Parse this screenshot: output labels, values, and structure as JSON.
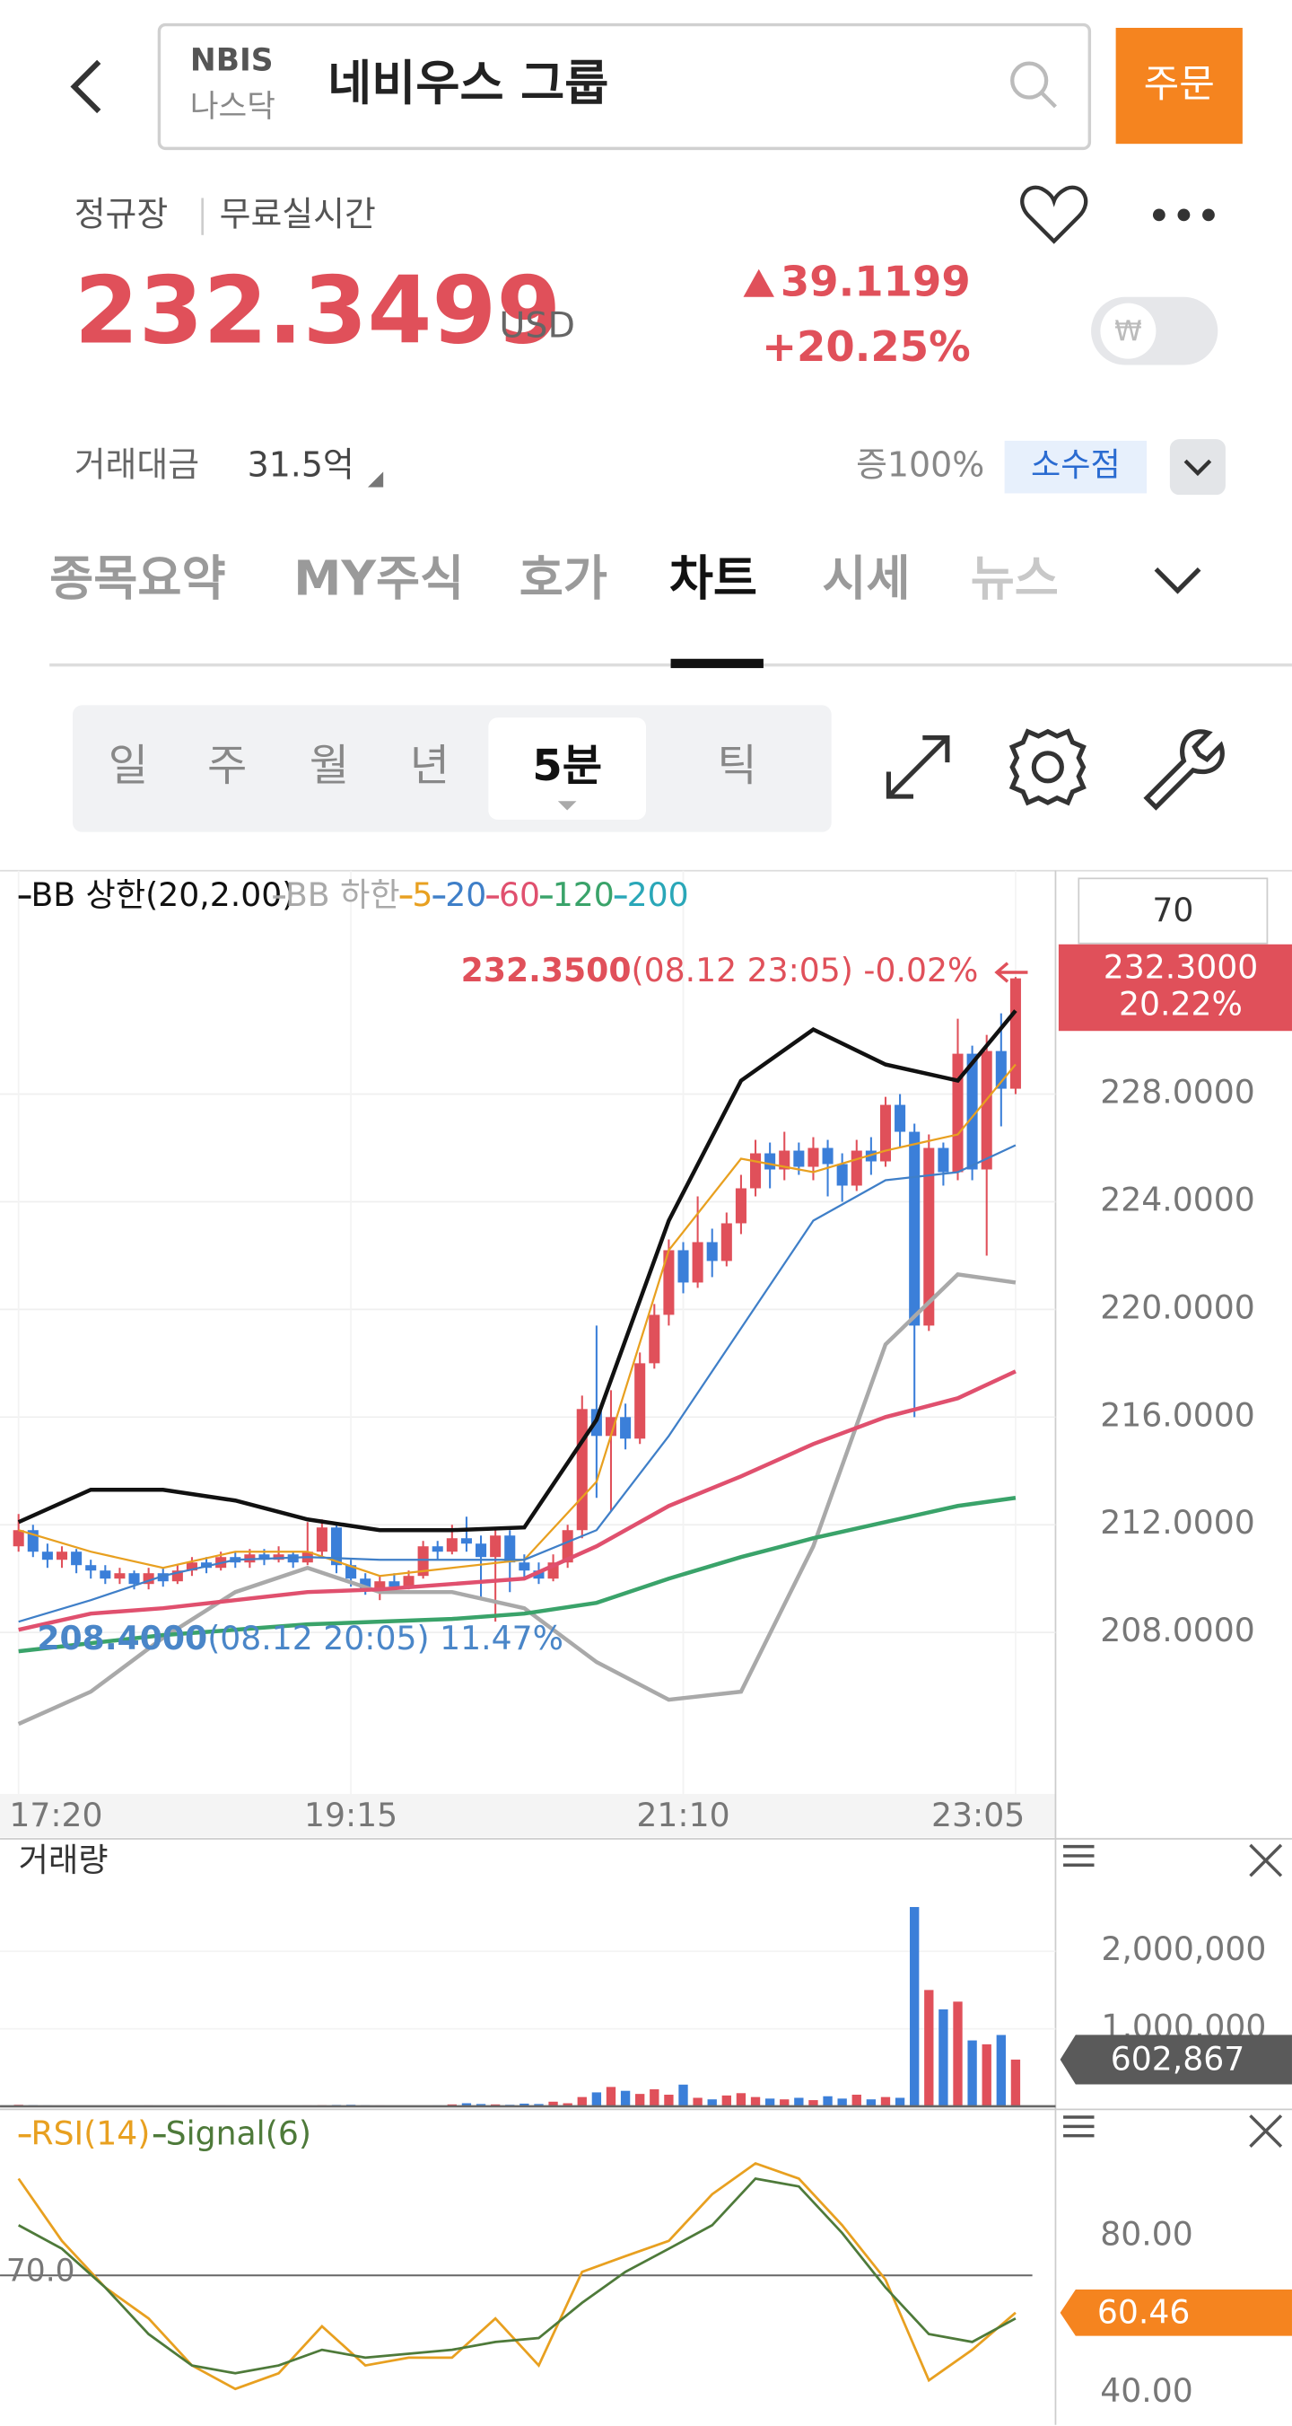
{
  "header": {
    "ticker": "NBIS",
    "market": "나스닥",
    "name": "네비우스 그룹",
    "order_button": "주문"
  },
  "quote": {
    "session": "정규장",
    "feed": "무료실시간",
    "price": "232.3499",
    "currency": "USD",
    "change": "39.1199",
    "change_pct": "+20.25%",
    "currency_toggle": "₩",
    "turnover_label": "거래대금",
    "turnover": "31.5억",
    "margin": "증100%",
    "fractional": "소수점"
  },
  "tabs": [
    "종목요약",
    "MY주식",
    "호가",
    "차트",
    "시세",
    "뉴스"
  ],
  "periods": [
    "일",
    "주",
    "월",
    "년",
    "5분",
    "틱"
  ],
  "chart_data": [
    {
      "type": "candlestick",
      "zoom_input": "70",
      "categories": [
        "17:20",
        null,
        null,
        null,
        null,
        null,
        null,
        null,
        null,
        null,
        null,
        null,
        null,
        null,
        null,
        null,
        null,
        null,
        null,
        null,
        null,
        null,
        null,
        "19:15",
        null,
        null,
        null,
        null,
        null,
        null,
        null,
        null,
        null,
        null,
        null,
        null,
        null,
        null,
        null,
        null,
        null,
        null,
        null,
        null,
        null,
        null,
        "21:10",
        null,
        null,
        null,
        null,
        null,
        null,
        null,
        null,
        null,
        null,
        null,
        null,
        null,
        null,
        null,
        null,
        null,
        null,
        null,
        null,
        null,
        null,
        "23:05"
      ],
      "open": [
        211.2,
        211.8,
        211.0,
        210.7,
        211.0,
        210.5,
        210.3,
        210.0,
        210.2,
        209.8,
        210.2,
        209.9,
        210.3,
        210.6,
        210.4,
        210.8,
        210.6,
        210.9,
        210.7,
        210.9,
        210.6,
        211.0,
        211.9,
        210.5,
        210.0,
        209.6,
        209.9,
        209.7,
        210.1,
        211.2,
        211.0,
        211.5,
        211.3,
        210.8,
        211.6,
        210.6,
        210.3,
        210.0,
        210.6,
        211.8,
        216.3,
        215.3,
        216.0,
        215.2,
        218.0,
        219.8,
        222.2,
        221.0,
        222.5,
        221.8,
        223.2,
        224.5,
        225.8,
        225.2,
        225.9,
        225.3,
        226.0,
        225.4,
        224.6,
        225.9,
        225.5,
        227.6,
        226.6,
        219.4,
        226.0,
        225.1,
        229.5,
        225.2,
        229.6,
        228.2
      ],
      "high": [
        212.4,
        212.0,
        211.3,
        211.2,
        211.1,
        210.7,
        210.5,
        210.4,
        210.3,
        210.4,
        210.4,
        210.5,
        210.8,
        210.8,
        211.0,
        211.0,
        211.1,
        211.1,
        211.2,
        211.0,
        212.1,
        212.2,
        212.0,
        210.7,
        210.2,
        210.1,
        210.2,
        210.3,
        211.4,
        211.4,
        212.0,
        212.3,
        211.6,
        211.8,
        211.8,
        210.9,
        210.6,
        210.9,
        212.0,
        216.8,
        219.4,
        217.0,
        216.5,
        218.4,
        220.2,
        222.6,
        222.5,
        224.2,
        223.0,
        223.6,
        225.0,
        226.3,
        226.2,
        226.6,
        226.2,
        226.4,
        226.3,
        225.8,
        226.3,
        226.4,
        227.9,
        228.0,
        226.9,
        226.5,
        226.2,
        230.8,
        229.8,
        230.2,
        231.0,
        232.35
      ],
      "low": [
        211.0,
        210.8,
        210.4,
        210.4,
        210.2,
        210.0,
        209.8,
        209.8,
        209.6,
        209.6,
        209.7,
        209.8,
        210.1,
        210.2,
        210.3,
        210.4,
        210.4,
        210.5,
        210.6,
        210.4,
        210.5,
        210.8,
        210.2,
        209.7,
        209.4,
        209.2,
        209.5,
        209.6,
        210.0,
        210.7,
        210.9,
        211.0,
        209.2,
        208.4,
        209.5,
        210.0,
        209.8,
        209.9,
        210.4,
        211.5,
        213.0,
        212.5,
        214.8,
        215.0,
        217.8,
        219.4,
        220.6,
        220.8,
        221.2,
        221.6,
        222.8,
        224.2,
        224.5,
        224.8,
        225.0,
        224.8,
        224.2,
        224.0,
        224.4,
        225.0,
        225.3,
        226.0,
        216.0,
        219.2,
        224.6,
        224.8,
        224.8,
        222.0,
        226.8,
        228.0
      ],
      "close": [
        211.8,
        211.0,
        210.7,
        211.0,
        210.5,
        210.3,
        210.0,
        210.2,
        209.8,
        210.2,
        209.9,
        210.3,
        210.6,
        210.4,
        210.8,
        210.6,
        210.9,
        210.7,
        210.9,
        210.6,
        211.0,
        211.9,
        210.5,
        210.0,
        209.6,
        209.9,
        209.7,
        210.1,
        211.2,
        211.0,
        211.5,
        211.3,
        210.8,
        211.6,
        210.6,
        210.3,
        210.0,
        210.6,
        211.8,
        216.3,
        215.3,
        216.0,
        215.2,
        218.0,
        219.8,
        222.2,
        221.0,
        222.5,
        221.8,
        223.2,
        224.5,
        225.8,
        225.2,
        225.9,
        225.3,
        226.0,
        225.4,
        224.6,
        225.9,
        225.5,
        227.6,
        226.6,
        219.4,
        226.0,
        225.1,
        229.5,
        225.2,
        229.6,
        228.2,
        232.3
      ],
      "up_color": "#e0505a",
      "down_color": "#3b7fd9",
      "series": [
        {
          "name": "BB 상한(20,2.00)",
          "color": "#111111",
          "x": [
            0,
            5,
            10,
            15,
            20,
            25,
            30,
            35,
            40,
            45,
            50,
            55,
            60,
            65,
            69
          ],
          "values": [
            212.1,
            213.3,
            213.3,
            212.9,
            212.2,
            211.8,
            211.8,
            211.9,
            215.9,
            223.3,
            228.5,
            230.4,
            229.1,
            228.5,
            231.1
          ]
        },
        {
          "name": "BB 하한",
          "color": "#a9a9a9",
          "x": [
            0,
            5,
            10,
            15,
            20,
            25,
            30,
            35,
            40,
            45,
            50,
            55,
            60,
            65,
            69
          ],
          "values": [
            204.6,
            205.8,
            207.8,
            209.5,
            210.4,
            209.5,
            209.5,
            208.9,
            206.9,
            205.5,
            205.8,
            211.2,
            218.7,
            221.3,
            221.0
          ]
        },
        {
          "name": "5",
          "color": "#e8a020",
          "x": [
            0,
            5,
            10,
            15,
            20,
            25,
            30,
            35,
            40,
            45,
            50,
            55,
            60,
            65,
            69
          ],
          "values": [
            211.8,
            211.0,
            210.4,
            211.0,
            211.0,
            210.1,
            210.4,
            210.7,
            213.6,
            222.2,
            225.6,
            225.1,
            225.9,
            226.5,
            229.1
          ]
        },
        {
          "name": "20",
          "color": "#3f7fc8",
          "x": [
            0,
            5,
            10,
            15,
            20,
            25,
            30,
            35,
            40,
            45,
            50,
            55,
            60,
            65,
            69
          ],
          "values": [
            208.4,
            209.2,
            210.1,
            210.7,
            210.8,
            210.7,
            210.7,
            210.7,
            211.8,
            215.3,
            219.3,
            223.3,
            224.8,
            225.1,
            226.1
          ]
        },
        {
          "name": "60",
          "color": "#e0506e",
          "x": [
            0,
            5,
            10,
            15,
            20,
            25,
            30,
            35,
            40,
            45,
            50,
            55,
            60,
            65,
            69
          ],
          "values": [
            208.1,
            208.7,
            208.9,
            209.2,
            209.5,
            209.6,
            209.8,
            210.0,
            211.2,
            212.7,
            213.8,
            215.0,
            216.0,
            216.7,
            217.7
          ]
        },
        {
          "name": "120",
          "color": "#3aa36a",
          "x": [
            0,
            5,
            10,
            15,
            20,
            25,
            30,
            35,
            40,
            45,
            50,
            55,
            60,
            65,
            69
          ],
          "values": [
            207.3,
            207.6,
            207.9,
            208.1,
            208.3,
            208.4,
            208.5,
            208.7,
            209.1,
            210.0,
            210.8,
            211.5,
            212.1,
            212.7,
            213.0
          ]
        },
        {
          "name": "200",
          "color": "#2aa7b8",
          "x": [],
          "values": []
        }
      ],
      "ylim": [
        202.0,
        236.3
      ],
      "yticks": [
        {
          "value": 228,
          "label": "228.0000"
        },
        {
          "value": 224,
          "label": "224.0000"
        },
        {
          "value": 220,
          "label": "220.0000"
        },
        {
          "value": 216,
          "label": "216.0000"
        },
        {
          "value": 212,
          "label": "212.0000"
        },
        {
          "value": 208,
          "label": "208.0000"
        }
      ],
      "grid": true,
      "max_label": "232.3500",
      "max_note": "(08.12 23:05) -0.02%",
      "min_label": "208.4000",
      "min_note": "(08.12 20:05) 11.47%",
      "current_label": "232.3000",
      "current_pct": "20.22%"
    },
    {
      "type": "bar",
      "title": "거래량",
      "values": [
        20000,
        15000,
        12000,
        10000,
        9000,
        11000,
        8000,
        9000,
        10000,
        12000,
        8000,
        9000,
        7000,
        10000,
        12000,
        9000,
        8000,
        11000,
        9000,
        10000,
        12000,
        15000,
        18000,
        20000,
        14000,
        12000,
        10000,
        9000,
        11000,
        12000,
        25000,
        40000,
        30000,
        25000,
        20000,
        35000,
        30000,
        60000,
        40000,
        120000,
        180000,
        250000,
        200000,
        160000,
        220000,
        150000,
        280000,
        110000,
        90000,
        140000,
        170000,
        120000,
        100000,
        90000,
        110000,
        80000,
        130000,
        100000,
        150000,
        90000,
        120000,
        110000,
        2570000,
        1500000,
        1250000,
        1350000,
        850000,
        800000,
        920000,
        602867
      ],
      "ylim": [
        0,
        3330000
      ],
      "yticks": [
        {
          "value": 2000000,
          "label": "2,000,000"
        },
        {
          "value": 1000000,
          "label": "1,000,000"
        }
      ],
      "current_label": "602,867"
    },
    {
      "type": "line",
      "series": [
        {
          "name": "RSI(14)",
          "color": "#e8a020",
          "x": [
            0,
            3,
            6,
            9,
            12,
            15,
            18,
            21,
            24,
            27,
            30,
            33,
            36,
            39,
            42,
            45,
            48,
            51,
            54,
            57,
            60,
            63,
            66,
            69
          ],
          "values": [
            94.7,
            78.8,
            66.9,
            59,
            47,
            41,
            45,
            57,
            47,
            49,
            49,
            59,
            47,
            70.9,
            74.9,
            78.8,
            90.7,
            98.6,
            94.7,
            82.8,
            68.9,
            43.2,
            51,
            60.46
          ]
        },
        {
          "name": "Signal(6)",
          "color": "#4e7a3a",
          "x": [
            0,
            3,
            6,
            9,
            12,
            15,
            18,
            21,
            24,
            27,
            30,
            33,
            36,
            39,
            42,
            45,
            48,
            51,
            54,
            57,
            60,
            63,
            66,
            69
          ],
          "values": [
            82.8,
            76.8,
            66.9,
            55,
            47,
            45,
            47,
            51,
            49,
            50,
            51,
            53,
            54,
            63,
            70.9,
            76.8,
            82.8,
            94.7,
            92.7,
            80.8,
            66.9,
            55,
            53,
            59
          ]
        }
      ],
      "ylim": [
        33,
        110
      ],
      "yticks": [
        {
          "value": 80,
          "label": "80.00"
        },
        {
          "value": 40,
          "label": "40.00"
        }
      ],
      "reference": {
        "value": 70,
        "label": "70.0"
      },
      "current_label": "60.46"
    }
  ]
}
